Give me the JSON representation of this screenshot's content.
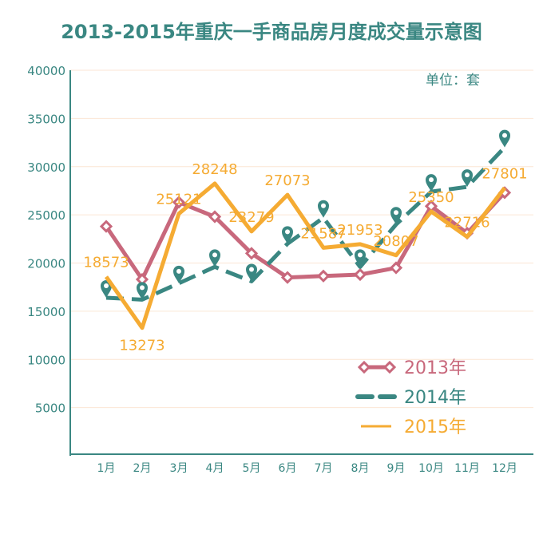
{
  "chart_data": {
    "type": "line",
    "title": "2013-2015年重庆一手商品房月度成交量示意图",
    "unit_label": "单位：套",
    "xlabel": "",
    "ylabel": "",
    "ylim": [
      0,
      40000
    ],
    "yticks": [
      5000,
      10000,
      15000,
      20000,
      25000,
      30000,
      35000,
      40000
    ],
    "grid": true,
    "legend_position": "bottom-right",
    "categories": [
      "1月",
      "2月",
      "3月",
      "4月",
      "5月",
      "6月",
      "7月",
      "8月",
      "9月",
      "10月",
      "11月",
      "12月"
    ],
    "series": [
      {
        "name": "2013年",
        "color": "#c8687c",
        "style": "solid-diamond",
        "values": [
          23800,
          18300,
          26300,
          24800,
          21000,
          18500,
          18650,
          18800,
          19500,
          25900,
          23100,
          27300
        ]
      },
      {
        "name": "2014年",
        "color": "#3a8782",
        "style": "dashed-pin",
        "values": [
          16400,
          16200,
          17900,
          19600,
          18100,
          22000,
          24700,
          19600,
          24000,
          27400,
          27900,
          32000
        ]
      },
      {
        "name": "2015年",
        "color": "#f5ab33",
        "style": "solid-labeled",
        "values": [
          18573,
          13273,
          25121,
          28248,
          23279,
          27073,
          21587,
          21953,
          20807,
          25350,
          22716,
          27801
        ]
      }
    ]
  }
}
